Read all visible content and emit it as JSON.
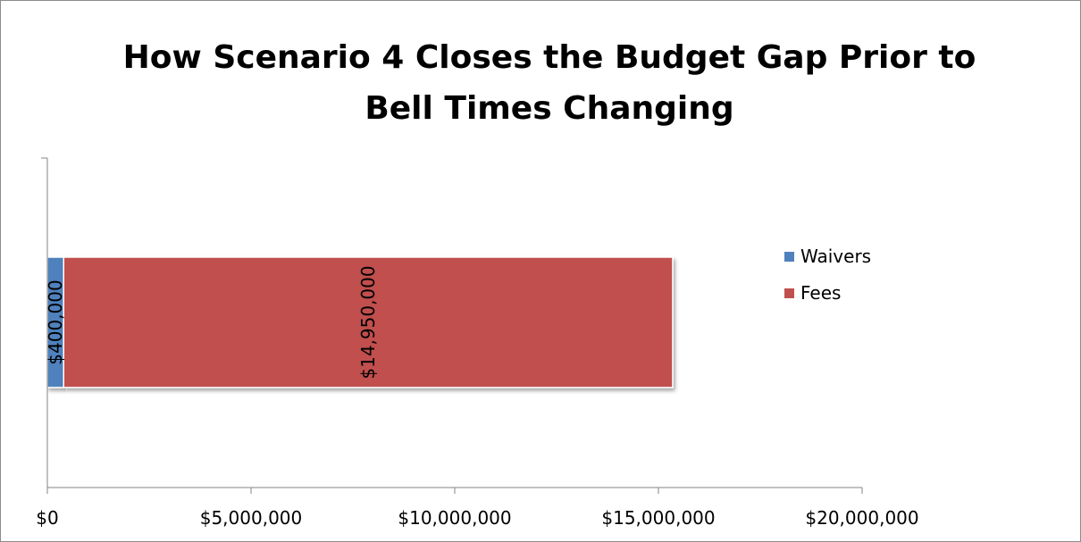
{
  "chart_data": {
    "type": "bar",
    "orientation": "horizontal",
    "stacked": true,
    "title": "How Scenario 4 Closes the Budget Gap Prior to Bell Times Changing",
    "title_lines": [
      "How Scenario 4 Closes the Budget Gap Prior to",
      "Bell Times Changing"
    ],
    "categories": [
      ""
    ],
    "series": [
      {
        "name": "Waivers",
        "values": [
          400000
        ],
        "color": "#4f81bd",
        "label": "$400,000"
      },
      {
        "name": "Fees",
        "values": [
          14950000
        ],
        "color": "#c0504d",
        "label": "$14,950,000"
      }
    ],
    "xlim": [
      0,
      20000000
    ],
    "x_ticks": [
      0,
      5000000,
      10000000,
      15000000,
      20000000
    ],
    "x_tick_labels": [
      "$0",
      "$5,000,000",
      "$10,000,000",
      "$15,000,000",
      "$20,000,000"
    ],
    "xlabel": "",
    "ylabel": "",
    "grid": false,
    "legend_position": "right"
  }
}
